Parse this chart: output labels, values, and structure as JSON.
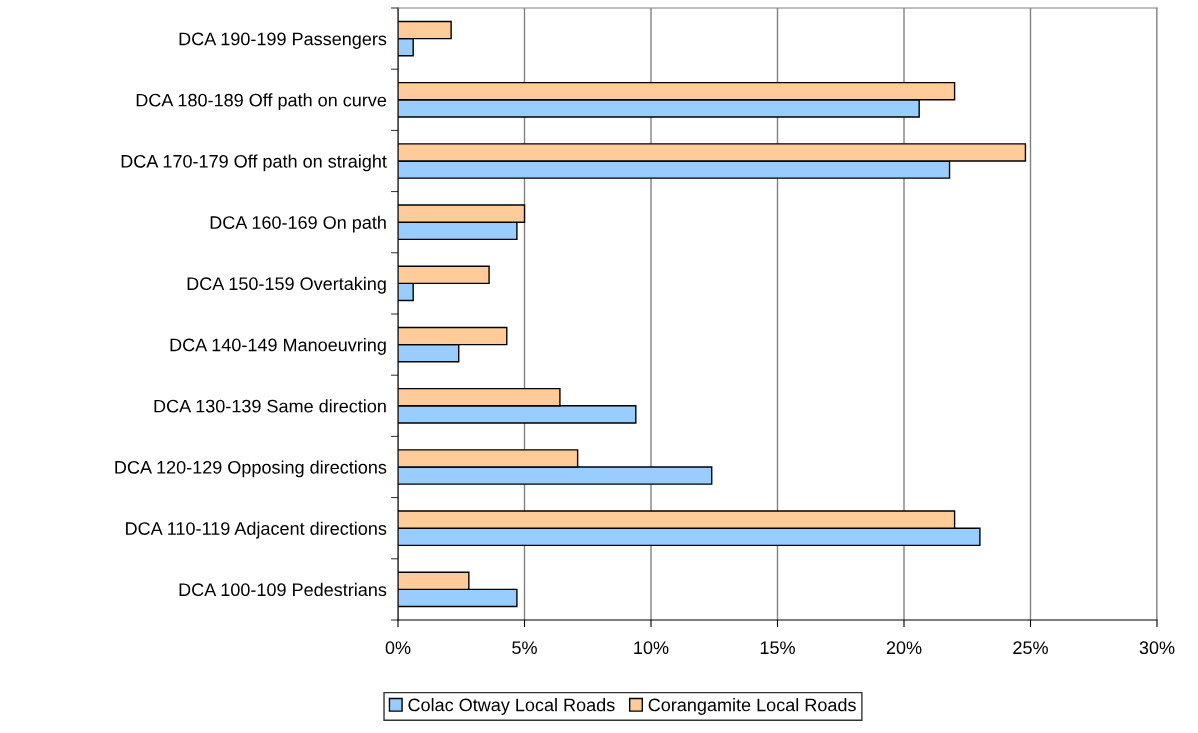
{
  "chart_data": {
    "type": "bar",
    "orientation": "horizontal",
    "categories": [
      "DCA 190-199 Passengers",
      "DCA 180-189 Off path on curve",
      "DCA 170-179 Off path on straight",
      "DCA 160-169 On path",
      "DCA 150-159 Overtaking",
      "DCA 140-149 Manoeuvring",
      "DCA 130-139 Same direction",
      "DCA 120-129 Opposing directions",
      "DCA 110-119 Adjacent directions",
      "DCA 100-109 Pedestrians"
    ],
    "series": [
      {
        "name": "Colac Otway Local Roads",
        "color": "#99ccff",
        "values": [
          0.6,
          20.6,
          21.8,
          4.7,
          0.6,
          2.4,
          9.4,
          12.4,
          23.0,
          4.7
        ]
      },
      {
        "name": "Corangamite Local Roads",
        "color": "#ffcc99",
        "values": [
          2.1,
          22.0,
          24.8,
          5.0,
          3.6,
          4.3,
          6.4,
          7.1,
          22.0,
          2.8
        ]
      }
    ],
    "xlim": [
      0,
      30
    ],
    "xticks": [
      {
        "value": 0,
        "label": "0%"
      },
      {
        "value": 5,
        "label": "5%"
      },
      {
        "value": 10,
        "label": "10%"
      },
      {
        "value": 15,
        "label": "15%"
      },
      {
        "value": 20,
        "label": "20%"
      },
      {
        "value": 25,
        "label": "25%"
      },
      {
        "value": 30,
        "label": "30%"
      }
    ],
    "grid": "x",
    "legend": "bottom"
  }
}
